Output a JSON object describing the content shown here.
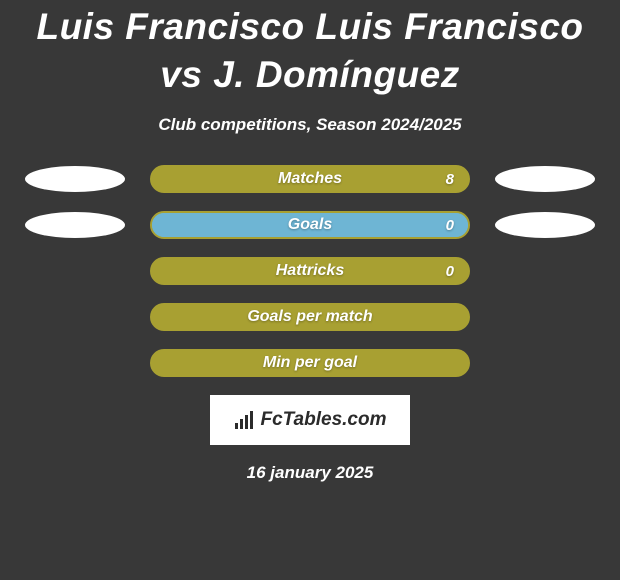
{
  "title": "Luis Francisco Luis Francisco vs J. Domínguez",
  "subtitle": "Club competitions, Season 2024/2025",
  "date": "16 january 2025",
  "logo_text": "FcTables.com",
  "colors": {
    "background": "#383838",
    "olive": "#a8a032",
    "blue": "#6eb5d4",
    "white": "#ffffff",
    "text": "#ffffff"
  },
  "stats": [
    {
      "label": "Matches",
      "value": "8",
      "left_ellipse_color": "#ffffff",
      "right_ellipse_color": "#ffffff",
      "bar_bg": "#a8a032",
      "bar_border": "#a8a032",
      "fill_color": "#a8a032",
      "fill_pct": 100,
      "show_value": true,
      "show_ellipses": true
    },
    {
      "label": "Goals",
      "value": "0",
      "left_ellipse_color": "#ffffff",
      "right_ellipse_color": "#ffffff",
      "bar_bg": "#6eb5d4",
      "bar_border": "#a8a032",
      "fill_color": "#6eb5d4",
      "fill_pct": 100,
      "show_value": true,
      "show_ellipses": true
    },
    {
      "label": "Hattricks",
      "value": "0",
      "bar_bg": "#a8a032",
      "bar_border": "#a8a032",
      "fill_color": "#a8a032",
      "fill_pct": 100,
      "show_value": true,
      "show_ellipses": false
    },
    {
      "label": "Goals per match",
      "value": "",
      "bar_bg": "#a8a032",
      "bar_border": "#a8a032",
      "fill_color": "#a8a032",
      "fill_pct": 100,
      "show_value": false,
      "show_ellipses": false
    },
    {
      "label": "Min per goal",
      "value": "",
      "bar_bg": "#a8a032",
      "bar_border": "#a8a032",
      "fill_color": "#a8a032",
      "fill_pct": 100,
      "show_value": false,
      "show_ellipses": false
    }
  ]
}
